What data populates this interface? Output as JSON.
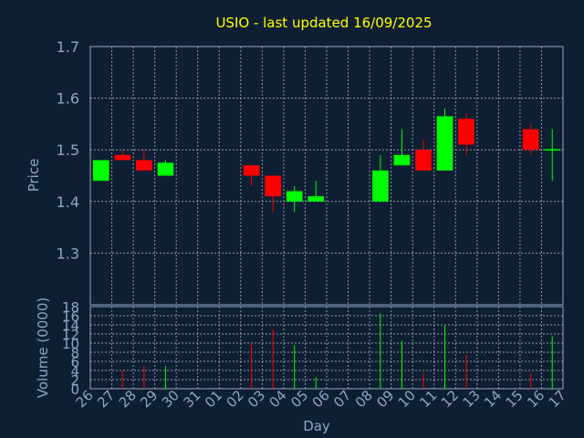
{
  "chart_data": {
    "type": "candlestick",
    "title": "USIO - last updated 16/09/2025",
    "ylabel_price": "Price",
    "ylabel_volume": "Volume (0000)",
    "xlabel": "Day",
    "price_ylim": [
      1.2,
      1.7
    ],
    "price_ticks": [
      "1.3",
      "1.4",
      "1.5",
      "1.6",
      "1.7"
    ],
    "volume_ylim": [
      0,
      18
    ],
    "volume_ticks": [
      "0",
      "2",
      "4",
      "6",
      "8",
      "10",
      "12",
      "14",
      "16",
      "18"
    ],
    "x_tick_labels": [
      "26",
      "27",
      "28",
      "29",
      "30",
      "31",
      "01",
      "02",
      "03",
      "04",
      "05",
      "06",
      "07",
      "08",
      "09",
      "10",
      "11",
      "12",
      "13",
      "14",
      "15",
      "16",
      "17"
    ],
    "grid": true,
    "colors": {
      "up": "#00ff00",
      "down": "#ff0000",
      "background": "#0f1f33",
      "text": "#8aa6c8",
      "title": "#ffff00"
    },
    "candles": [
      {
        "day": "26",
        "open": 1.44,
        "high": 1.48,
        "low": 1.44,
        "close": 1.48,
        "volume": 0.0
      },
      {
        "day": "27",
        "open": 1.49,
        "high": 1.5,
        "low": 1.48,
        "close": 1.48,
        "volume": 4.0
      },
      {
        "day": "28",
        "open": 1.48,
        "high": 1.5,
        "low": 1.46,
        "close": 1.46,
        "volume": 5.0
      },
      {
        "day": "29",
        "open": 1.45,
        "high": 1.48,
        "low": 1.45,
        "close": 1.475,
        "volume": 5.0
      },
      {
        "day": "02",
        "open": 1.47,
        "high": 1.47,
        "low": 1.43,
        "close": 1.45,
        "volume": 10.0
      },
      {
        "day": "03",
        "open": 1.45,
        "high": 1.45,
        "low": 1.38,
        "close": 1.41,
        "volume": 13.0
      },
      {
        "day": "04",
        "open": 1.4,
        "high": 1.43,
        "low": 1.38,
        "close": 1.42,
        "volume": 9.5
      },
      {
        "day": "05",
        "open": 1.4,
        "high": 1.44,
        "low": 1.4,
        "close": 1.41,
        "volume": 2.5
      },
      {
        "day": "08",
        "open": 1.4,
        "high": 1.49,
        "low": 1.4,
        "close": 1.46,
        "volume": 16.5
      },
      {
        "day": "09",
        "open": 1.47,
        "high": 1.54,
        "low": 1.47,
        "close": 1.49,
        "volume": 10.5
      },
      {
        "day": "10",
        "open": 1.5,
        "high": 1.52,
        "low": 1.46,
        "close": 1.46,
        "volume": 3.5
      },
      {
        "day": "11",
        "open": 1.46,
        "high": 1.58,
        "low": 1.46,
        "close": 1.565,
        "volume": 14.0
      },
      {
        "day": "12",
        "open": 1.56,
        "high": 1.57,
        "low": 1.49,
        "close": 1.51,
        "volume": 7.5
      },
      {
        "day": "15",
        "open": 1.54,
        "high": 1.55,
        "low": 1.49,
        "close": 1.5,
        "volume": 3.5
      },
      {
        "day": "16",
        "open": 1.5,
        "high": 1.54,
        "low": 1.44,
        "close": 1.5,
        "volume": 11.5
      }
    ]
  }
}
